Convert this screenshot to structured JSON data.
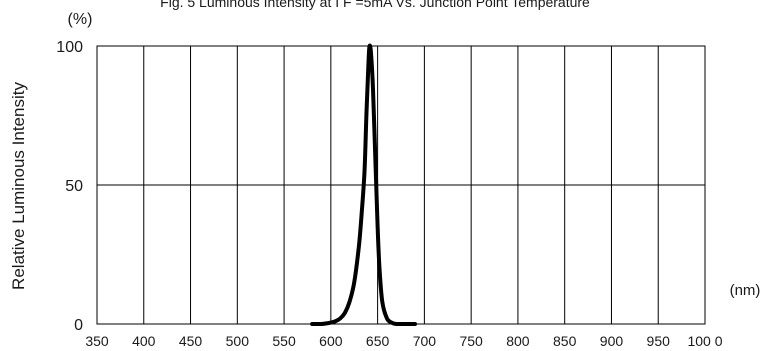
{
  "chart_data": {
    "type": "line",
    "title": "Fig. 5 Luminous Intensity at I F =5mA Vs. Junction Point Temperature",
    "ylabel": "Relative Luminous Intensity",
    "y_unit": "(%)",
    "x_unit": "(nm)",
    "xlim": [
      350,
      1000
    ],
    "ylim": [
      0,
      100
    ],
    "x_ticks": [
      350,
      400,
      450,
      500,
      550,
      600,
      650,
      700,
      750,
      800,
      850,
      900,
      950,
      1000
    ],
    "x_tick_labels": [
      "350",
      "400",
      "450",
      "500",
      "550",
      "600",
      "650",
      "700",
      "750",
      "800",
      "850",
      "900",
      "950",
      "100 0"
    ],
    "y_ticks": [
      0,
      50,
      100
    ],
    "y_tick_labels": [
      "0",
      "50",
      "100"
    ],
    "grid": true,
    "series": [
      {
        "color": "#000000",
        "x": [
          580,
          590,
          600,
          605,
          610,
          615,
          620,
          625,
          630,
          633,
          636,
          638,
          640,
          641,
          642,
          643,
          645,
          648,
          650,
          652,
          655,
          660,
          665,
          670,
          680,
          690
        ],
        "y": [
          0,
          0,
          0.5,
          1,
          2,
          4,
          8,
          15,
          28,
          40,
          55,
          75,
          92,
          99,
          100,
          97,
          85,
          55,
          35,
          20,
          8,
          2,
          0.5,
          0,
          0,
          0
        ]
      }
    ]
  }
}
